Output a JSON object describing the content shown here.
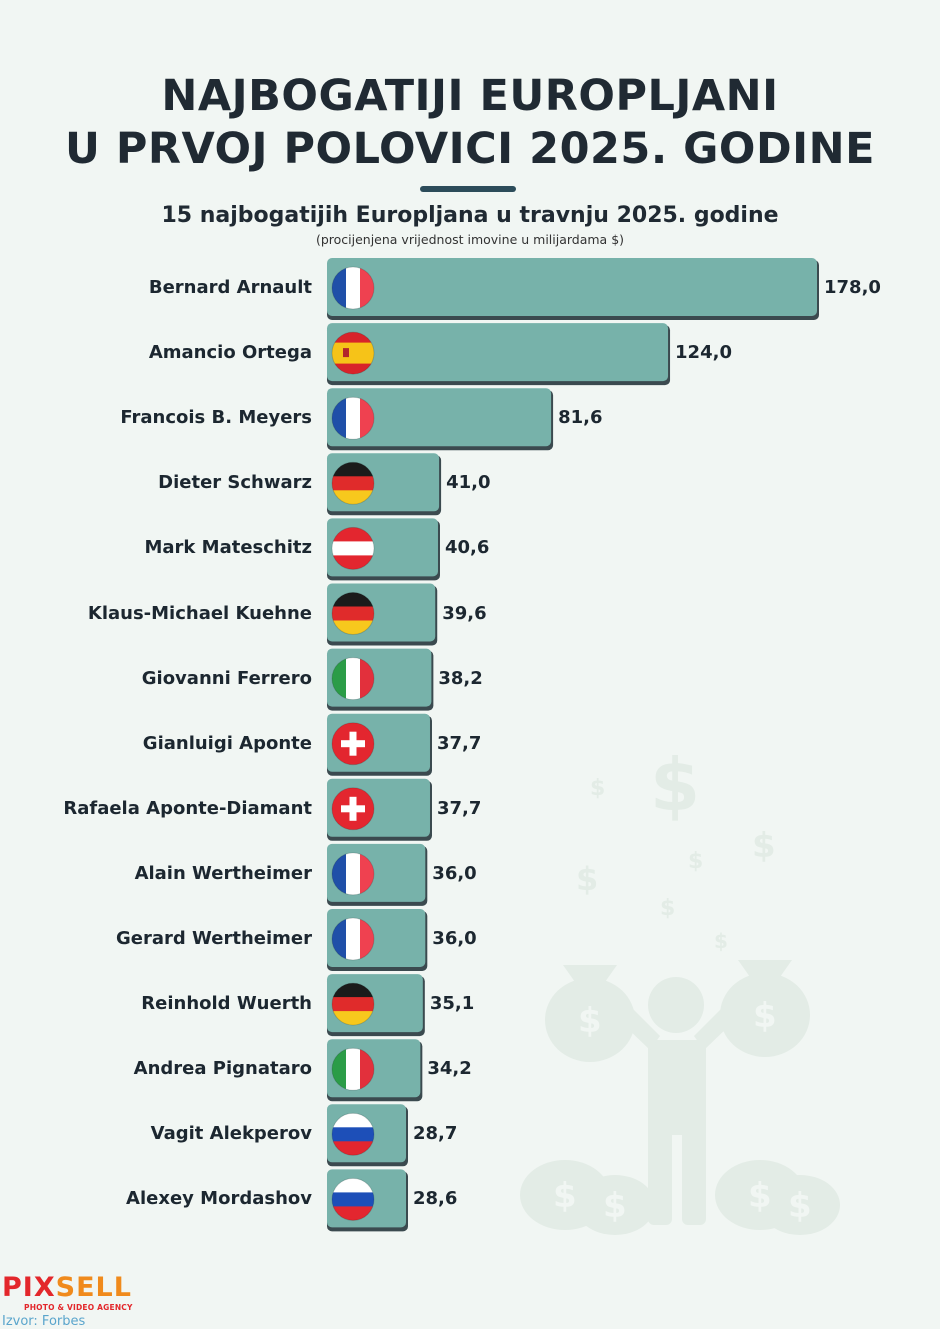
{
  "title_line1": "NAJBOGATIJI EUROPLJANI",
  "title_line2": "U PRVOJ POLOVICI 2025. GODINE",
  "subtitle": "15 najbogatijih Europljana u travnju 2025. godine",
  "note": "(procijenjena vrijednost imovine u milijardama $)",
  "logo": {
    "part1": "PIX",
    "part2": "SELL",
    "tagline": "PHOTO & VIDEO AGENCY"
  },
  "source": "Izvor: Forbes",
  "colors": {
    "bar": "#77b2aa",
    "bar_shadow": "#3b4a4f",
    "title": "#202a33",
    "accent_line": "#2c4c5a"
  },
  "chart_data": {
    "type": "bar",
    "orientation": "horizontal",
    "title": "15 najbogatijih Europljana u travnju 2025. godine",
    "categories": [
      "Bernard Arnault",
      "Amancio Ortega",
      "Francois B. Meyers",
      "Dieter Schwarz",
      "Mark Mateschitz",
      "Klaus-Michael Kuehne",
      "Giovanni Ferrero",
      "Gianluigi Aponte",
      "Rafaela Aponte-Diamant",
      "Alain Wertheimer",
      "Gerard Wertheimer",
      "Reinhold Wuerth",
      "Andrea Pignataro",
      "Vagit Alekperov",
      "Alexey Mordashov"
    ],
    "values": [
      178.0,
      124.0,
      81.6,
      41.0,
      40.6,
      39.6,
      38.2,
      37.7,
      37.7,
      36.0,
      36.0,
      35.1,
      34.2,
      28.7,
      28.6
    ],
    "value_labels": [
      "178,0",
      "124,0",
      "81,6",
      "41,0",
      "40,6",
      "39,6",
      "38,2",
      "37,7",
      "37,7",
      "36,0",
      "36,0",
      "35,1",
      "34,2",
      "28,7",
      "28,6"
    ],
    "flags": [
      "france-flag-icon",
      "spain-flag-icon",
      "france-flag-icon",
      "germany-flag-icon",
      "austria-flag-icon",
      "germany-flag-icon",
      "italy-flag-icon",
      "switzerland-flag-icon",
      "switzerland-flag-icon",
      "france-flag-icon",
      "france-flag-icon",
      "germany-flag-icon",
      "italy-flag-icon",
      "russia-flag-icon",
      "russia-flag-icon"
    ],
    "xlim": [
      0,
      178
    ],
    "grid": false,
    "legend": "none"
  }
}
